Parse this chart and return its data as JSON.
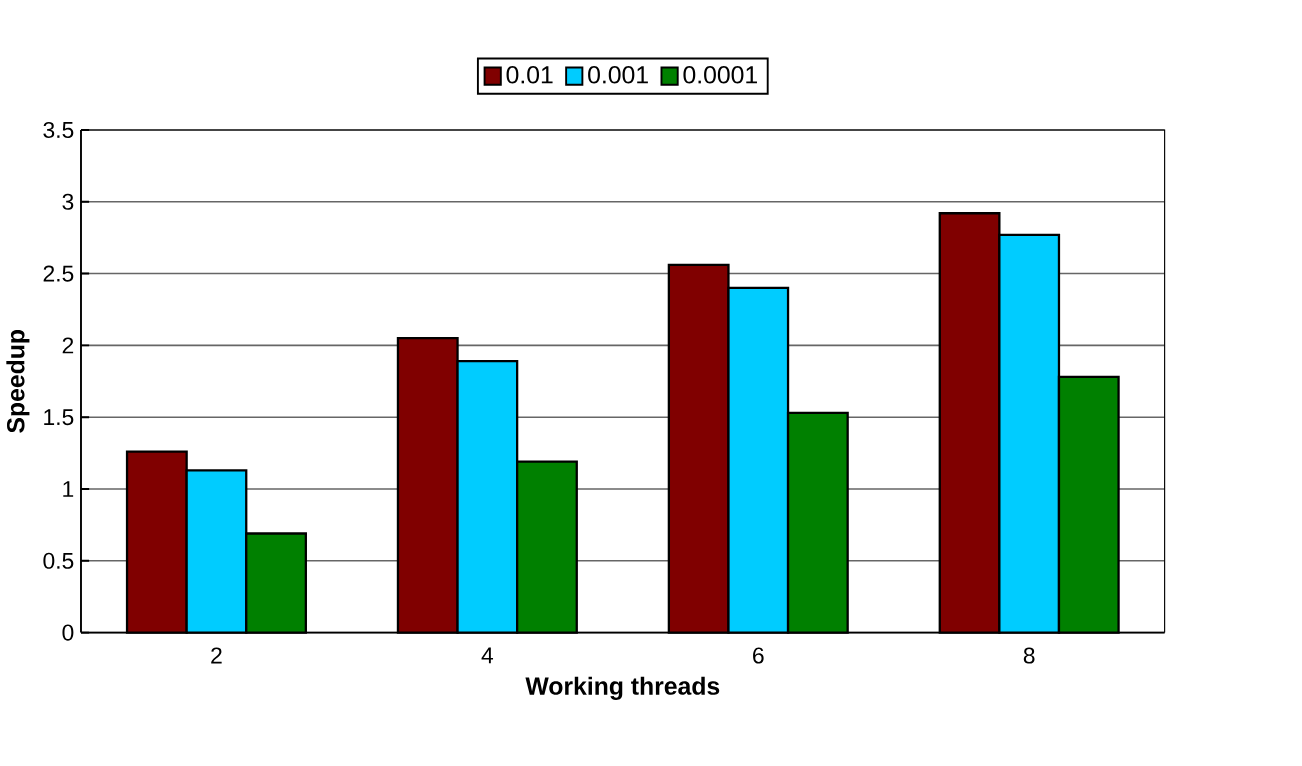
{
  "chart_data": {
    "type": "bar",
    "xlabel": "Working threads",
    "ylabel": "Speedup",
    "categories": [
      "2",
      "4",
      "6",
      "8"
    ],
    "series": [
      {
        "name": "0.01",
        "color": "#800000",
        "values": [
          1.26,
          2.05,
          2.56,
          2.92
        ]
      },
      {
        "name": "0.001",
        "color": "#00ccff",
        "values": [
          1.13,
          1.89,
          2.4,
          2.77
        ]
      },
      {
        "name": "0.0001",
        "color": "#008000",
        "values": [
          0.69,
          1.19,
          1.53,
          1.78
        ]
      }
    ],
    "ylim": [
      0,
      3.5
    ],
    "yticks": [
      0,
      0.5,
      1,
      1.5,
      2,
      2.5,
      3,
      3.5
    ],
    "grid": "y",
    "legend": "top"
  }
}
